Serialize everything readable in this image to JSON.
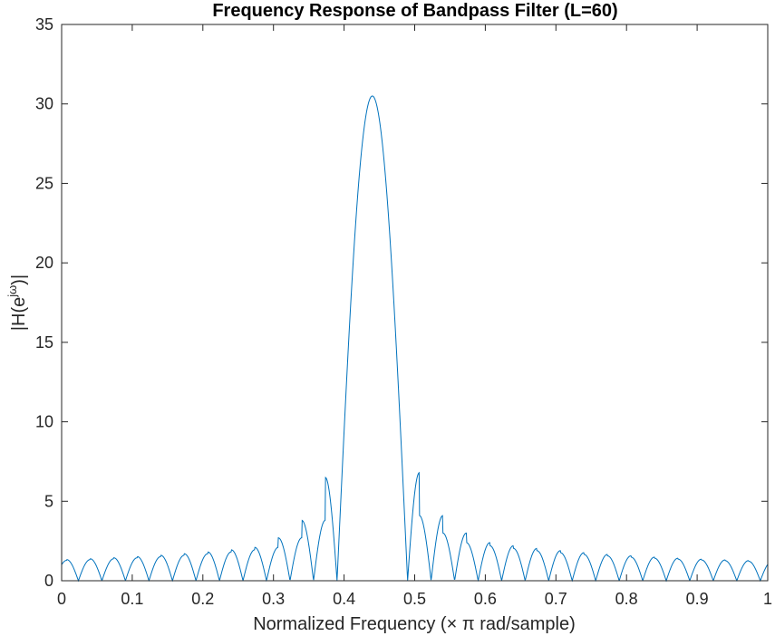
{
  "chart_data": {
    "type": "line",
    "title": "Frequency Response of Bandpass Filter (L=60)",
    "xlabel": "Normalized Frequency (× π rad/sample)",
    "ylabel": "|H(e^jω)|",
    "ylabel_parts": {
      "prefix": "|H(e",
      "sup": "jω",
      "suffix": ")|"
    },
    "xlim": [
      0,
      1
    ],
    "ylim": [
      0,
      35
    ],
    "xticks": [
      0,
      0.1,
      0.2,
      0.3,
      0.4,
      0.5,
      0.6,
      0.7,
      0.8,
      0.9,
      1
    ],
    "xtick_labels": [
      "0",
      "0.1",
      "0.2",
      "0.3",
      "0.4",
      "0.5",
      "0.6",
      "0.7",
      "0.8",
      "0.9",
      "1"
    ],
    "yticks": [
      0,
      5,
      10,
      15,
      20,
      25,
      30,
      35
    ],
    "ytick_labels": [
      "0",
      "5",
      "10",
      "15",
      "20",
      "25",
      "30",
      "35"
    ],
    "grid": false,
    "line_color": "#0072bd",
    "series": [
      {
        "filter_length": 60,
        "center_frequency": 0.44,
        "peak": 30.5,
        "null_spacing": 0.0333,
        "sidelobe_peaks_left": [
          6.5,
          3.8,
          2.7,
          2.1
        ],
        "sidelobe_peaks_right": [
          6.8,
          4.1,
          3.0,
          2.4
        ]
      }
    ]
  }
}
